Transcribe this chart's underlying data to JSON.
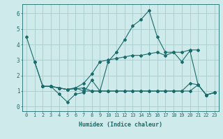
{
  "xlabel": "Humidex (Indice chaleur)",
  "background_color": "#ceeaea",
  "grid_color": "#aacccc",
  "line_color": "#1a6b6b",
  "xlim": [
    -0.5,
    23.5
  ],
  "ylim": [
    -0.3,
    6.6
  ],
  "xticks": [
    0,
    1,
    2,
    3,
    4,
    5,
    6,
    7,
    8,
    9,
    10,
    11,
    12,
    13,
    14,
    15,
    16,
    17,
    18,
    19,
    20,
    21,
    22,
    23
  ],
  "yticks": [
    0,
    1,
    2,
    3,
    4,
    5,
    6
  ],
  "series": [
    {
      "x": [
        0,
        1,
        2,
        3,
        4,
        5,
        6,
        7,
        8,
        9,
        10,
        11,
        12,
        13,
        14,
        15,
        16,
        17,
        18,
        19,
        20,
        21,
        22,
        23
      ],
      "y": [
        4.5,
        2.9,
        1.3,
        1.3,
        0.8,
        0.3,
        0.8,
        0.9,
        1.7,
        1.0,
        2.9,
        3.5,
        4.3,
        5.2,
        5.6,
        6.2,
        4.5,
        3.5,
        3.5,
        2.9,
        3.6,
        1.4,
        0.75,
        0.9
      ]
    },
    {
      "x": [
        1,
        2,
        3,
        4,
        5,
        6,
        7,
        8,
        9,
        10,
        11,
        12,
        13,
        14,
        15,
        16,
        17,
        18,
        19,
        20,
        21
      ],
      "y": [
        2.9,
        1.3,
        1.3,
        1.2,
        1.1,
        1.2,
        1.5,
        2.1,
        2.9,
        3.0,
        3.1,
        3.2,
        3.3,
        3.3,
        3.4,
        3.5,
        3.3,
        3.5,
        3.5,
        3.65,
        3.65
      ]
    },
    {
      "x": [
        2,
        3,
        4,
        5,
        6,
        7,
        8,
        9,
        10,
        11,
        12,
        13,
        14,
        15,
        16,
        17,
        18,
        19,
        20,
        21,
        22,
        23
      ],
      "y": [
        1.3,
        1.3,
        1.2,
        1.1,
        1.2,
        1.0,
        1.0,
        1.0,
        1.0,
        1.0,
        1.0,
        1.0,
        1.0,
        1.0,
        1.0,
        1.0,
        1.0,
        1.0,
        1.5,
        1.4,
        0.75,
        0.9
      ]
    },
    {
      "x": [
        2,
        3,
        4,
        5,
        6,
        7,
        8,
        9,
        10,
        11,
        12,
        13,
        14,
        15,
        16,
        17,
        18,
        19,
        20,
        21,
        22,
        23
      ],
      "y": [
        1.3,
        1.3,
        1.2,
        1.1,
        1.15,
        1.2,
        1.0,
        1.0,
        1.0,
        1.0,
        1.0,
        1.0,
        1.0,
        1.0,
        1.0,
        1.0,
        1.0,
        1.0,
        1.0,
        1.4,
        0.75,
        0.9
      ]
    }
  ]
}
